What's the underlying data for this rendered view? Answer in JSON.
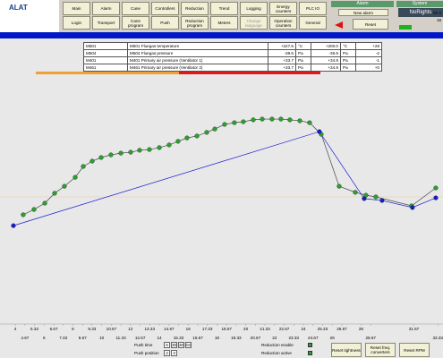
{
  "logo": "ALAT",
  "toolbar": {
    "row1": [
      "Main",
      "Alarm",
      "Cane",
      "Controllers",
      "Reduction",
      "Trend",
      "Logging",
      "Energy counters",
      "PLC IO"
    ],
    "row2": [
      "Login",
      "Transport",
      "Cane program",
      "Push",
      "Reduction program",
      "Meters",
      "Change language",
      "Operation counters",
      "General"
    ]
  },
  "alarm": {
    "title": "Alarm",
    "new_alarm": "New alarm",
    "reset": "Reset"
  },
  "system": {
    "title": "System",
    "user": "NoRights",
    "date": "02-1",
    "time": "16"
  },
  "table": {
    "rows": [
      [
        "M501",
        "M501 Fluegas temperature",
        "+227.6",
        "°C",
        "+200.0",
        "°C",
        "+28"
      ],
      [
        "M504",
        "M504 Fluegas pressure",
        "-39.6",
        "Pa",
        "-36.9",
        "Pa",
        "-2"
      ],
      [
        "M401",
        "M401 Primary air pressure (Ventilator 1)",
        "+33.7",
        "Pa",
        "+34.6",
        "Pa",
        "-1"
      ],
      [
        "M461",
        "M461 Primary air pressure (Ventilator 2)",
        "+33.7",
        "Pa",
        "+34.6",
        "Pa",
        "+0"
      ]
    ]
  },
  "chart_data": {
    "type": "line",
    "xlim": [
      2.94,
      33.69
    ],
    "ylim": [
      0,
      100
    ],
    "xticks_row1": [
      4,
      5.33,
      6.67,
      8,
      9.33,
      10.67,
      12,
      13.33,
      14.67,
      16,
      17.33,
      18.67,
      20,
      21.33,
      22.67,
      24,
      25.33,
      26.67,
      28,
      31.67
    ],
    "xticks_row2": [
      4.67,
      6,
      7.33,
      8.67,
      10,
      11.33,
      12.67,
      14,
      15.33,
      16.67,
      18,
      19.33,
      20.67,
      22,
      23.33,
      24.67,
      26,
      28.67,
      33.33
    ],
    "series": [
      {
        "color": "#2e9e2e",
        "x": [
          4.55,
          5.3,
          6.05,
          6.73,
          7.41,
          8.16,
          8.72,
          9.34,
          9.96,
          10.64,
          11.33,
          12.01,
          12.63,
          13.31,
          14.0,
          14.68,
          15.3,
          15.92,
          16.61,
          17.29,
          17.85,
          18.53,
          19.21,
          19.83,
          20.52,
          21.14,
          21.82,
          22.44,
          23.06,
          23.75,
          24.43,
          25.24,
          26.48,
          27.6,
          28.34,
          29.03,
          31.51,
          33.19
        ],
        "values": [
          42.6,
          44.8,
          47.4,
          51.5,
          54.4,
          58.1,
          62.6,
          64.8,
          66.3,
          67.4,
          68.1,
          68.5,
          69.3,
          69.6,
          70.4,
          71.5,
          73.0,
          74.4,
          75.2,
          76.7,
          78.1,
          80.0,
          80.7,
          81.1,
          81.9,
          82.2,
          82.2,
          82.2,
          81.9,
          81.5,
          80.7,
          75.9,
          54.4,
          51.9,
          50.7,
          50.0,
          46.3,
          53.7
        ]
      },
      {
        "color": "#1a1ad0",
        "x": [
          3.87,
          25.11,
          28.22,
          29.46,
          31.57,
          33.19
        ],
        "values": [
          38.1,
          77.0,
          49.3,
          48.5,
          45.6,
          49.6
        ]
      }
    ]
  },
  "footer": {
    "push_time": "Push time",
    "push_time_values": [
      "6",
      "30",
      "30",
      "04"
    ],
    "push_position": "Push position",
    "push_position_values": [
      "2",
      "3"
    ],
    "reduction_enable": "Reduction enable",
    "reduction_active": "Reduction active",
    "buttons": [
      "Reset tightness",
      "Reset freq. converters",
      "Reset RPM"
    ]
  }
}
